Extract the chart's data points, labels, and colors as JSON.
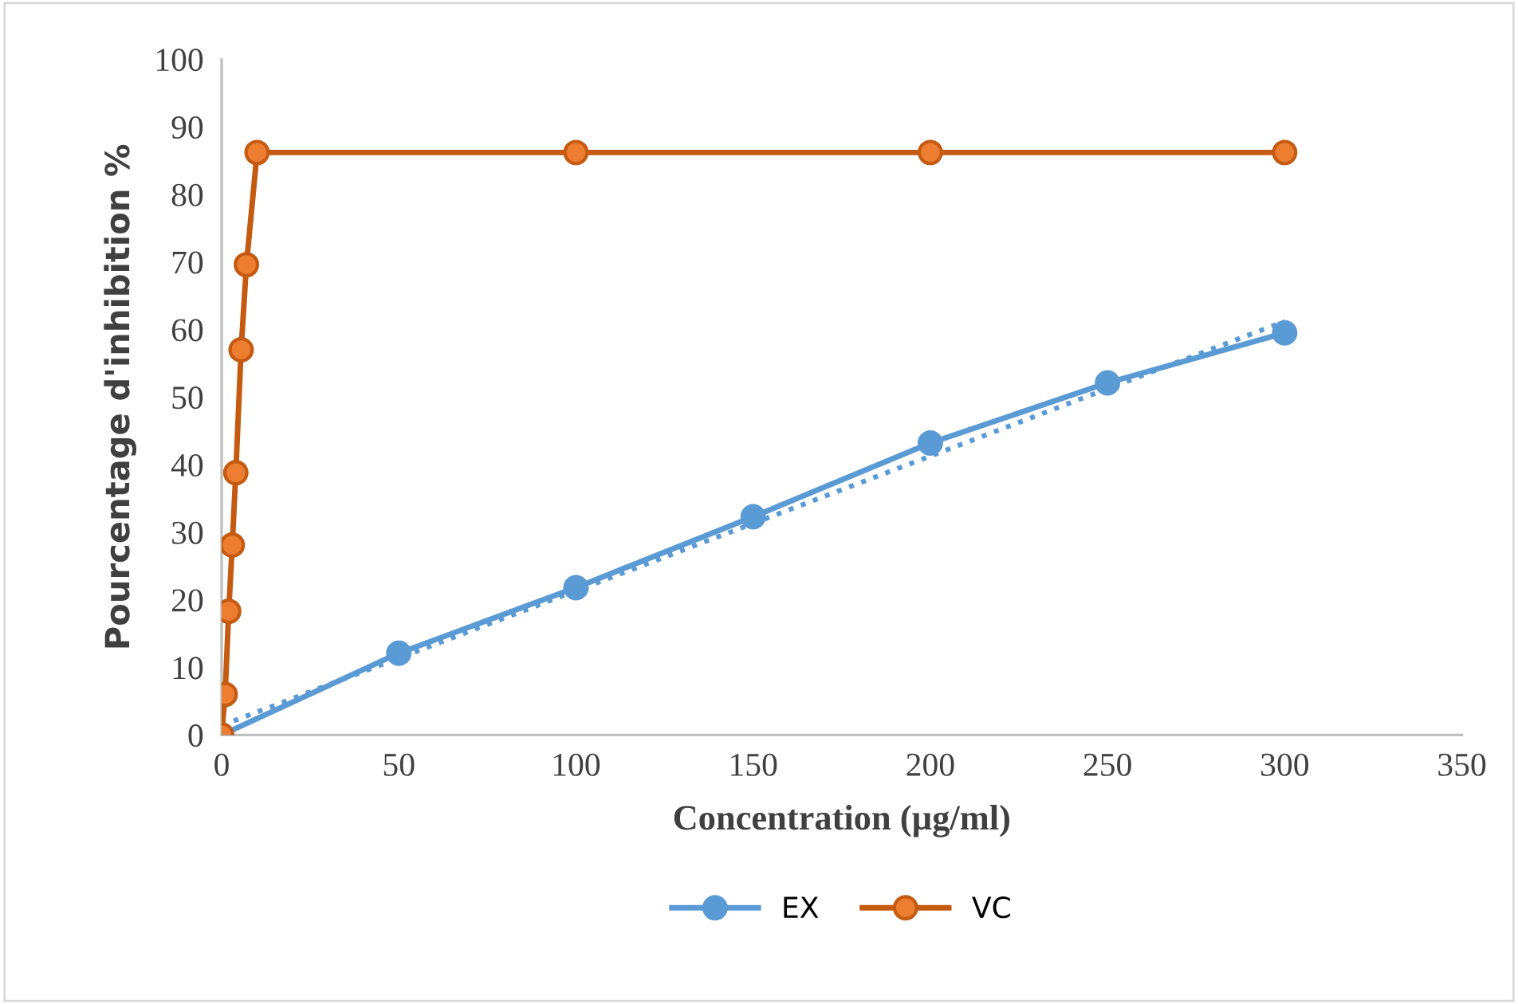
{
  "chart_data": {
    "type": "line",
    "xlabel": "Concentration (µg/ml)",
    "ylabel": "Pourcentage d'inhibition %",
    "xlim": [
      0,
      350
    ],
    "xticks": [
      0,
      50,
      100,
      150,
      200,
      250,
      300,
      350
    ],
    "ylim": [
      0,
      100
    ],
    "yticks": [
      0,
      10,
      20,
      30,
      40,
      50,
      60,
      70,
      80,
      90,
      100
    ],
    "grid": false,
    "legend": "bottom",
    "marker": "circle",
    "line_style": "solid",
    "series": [
      {
        "name": "EX",
        "color": "#5b9bd5",
        "x": [
          0,
          50,
          100,
          150,
          200,
          250,
          300
        ],
        "values": [
          0,
          12.1,
          21.8,
          32.3,
          43.2,
          52.1,
          59.5
        ]
      },
      {
        "name": "VC",
        "color": "#c55a11",
        "x": [
          0,
          1,
          2,
          3,
          4,
          5.5,
          7,
          10,
          100,
          200,
          300
        ],
        "values": [
          0,
          6,
          18.3,
          28.1,
          38.8,
          57,
          69.6,
          86.2,
          86.2,
          86.2,
          86.2
        ]
      },
      {
        "type": "line",
        "color": "#5b9bd5",
        "marker": "none",
        "line_style": "dotted",
        "x": [
          0,
          300
        ],
        "values": [
          1.4,
          61.2
        ]
      }
    ]
  }
}
